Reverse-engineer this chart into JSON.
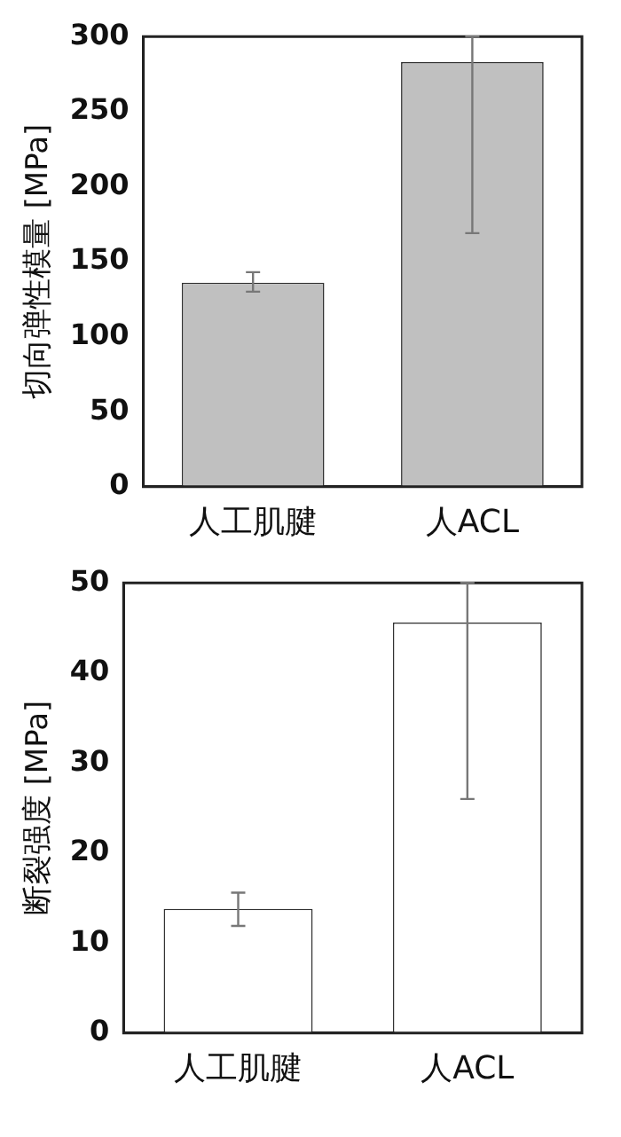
{
  "chart_data": [
    {
      "type": "bar",
      "ylabel": "切向弹性模量 [MPa]",
      "categories": [
        "人工肌腱",
        "人ACL"
      ],
      "values": [
        136,
        283
      ],
      "color": "#c0c0c0",
      "errors": [
        [
          130,
          143
        ],
        [
          169,
          300
        ]
      ],
      "ylim": [
        0,
        300
      ],
      "yticks": [
        0,
        50,
        100,
        150,
        200,
        250,
        300
      ],
      "grid": false,
      "legend": false
    },
    {
      "type": "bar",
      "ylabel": "断裂强度 [MPa]",
      "categories": [
        "人工肌腱",
        "人ACL"
      ],
      "values": [
        13.8,
        45.6
      ],
      "color": "#ffffff",
      "errors": [
        [
          11.9,
          15.6
        ],
        [
          26,
          50
        ]
      ],
      "ylim": [
        0,
        50
      ],
      "yticks": [
        0,
        10,
        20,
        30,
        40,
        50
      ],
      "grid": false,
      "legend": false
    }
  ]
}
